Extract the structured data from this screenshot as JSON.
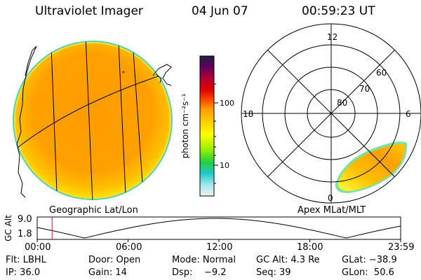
{
  "header": {
    "title": "Ultraviolet Imager",
    "date": "04 Jun 07",
    "time": "00:59:23 UT"
  },
  "left_panel": {
    "label": "Geographic Lat/Lon"
  },
  "right_panel": {
    "label": "Apex MLat/MLT",
    "mlt_labels": {
      "top": "12",
      "left": "18",
      "right": "6",
      "bottom": "0"
    },
    "lat_labels": [
      "80",
      "70",
      "60"
    ]
  },
  "colorbar": {
    "unit_label": "photon cm⁻²s⁻¹",
    "ticks": [
      "100",
      "10"
    ],
    "colors": [
      "#202040",
      "#600060",
      "#b00030",
      "#e00000",
      "#ff5000",
      "#ff9c00",
      "#ffc800",
      "#ffff00",
      "#a0f000",
      "#20d040",
      "#20c8c8",
      "#a0e8f0",
      "#f0f0f0"
    ]
  },
  "altitude_plot": {
    "ylabel": "GC Alt",
    "ymax": "9.0",
    "ymin": "1.8",
    "xticks": [
      "00:00",
      "06:00",
      "12:00",
      "18:00",
      "23:59"
    ],
    "marker_time_fraction": 0.041
  },
  "footer": {
    "row1": {
      "filter": "Flt: LBHL",
      "door": "Door: Open",
      "mode": "Mode: Normal",
      "gc_alt": "GC Alt: 4.3 Re",
      "glat": "GLat: −38.9"
    },
    "row2": {
      "ip": "IP: 36.0",
      "gain": "Gain: 14",
      "dsp": "Dsp:    −9.2",
      "seq": "Seq: 39",
      "glon": "GLon:  50.6"
    }
  }
}
